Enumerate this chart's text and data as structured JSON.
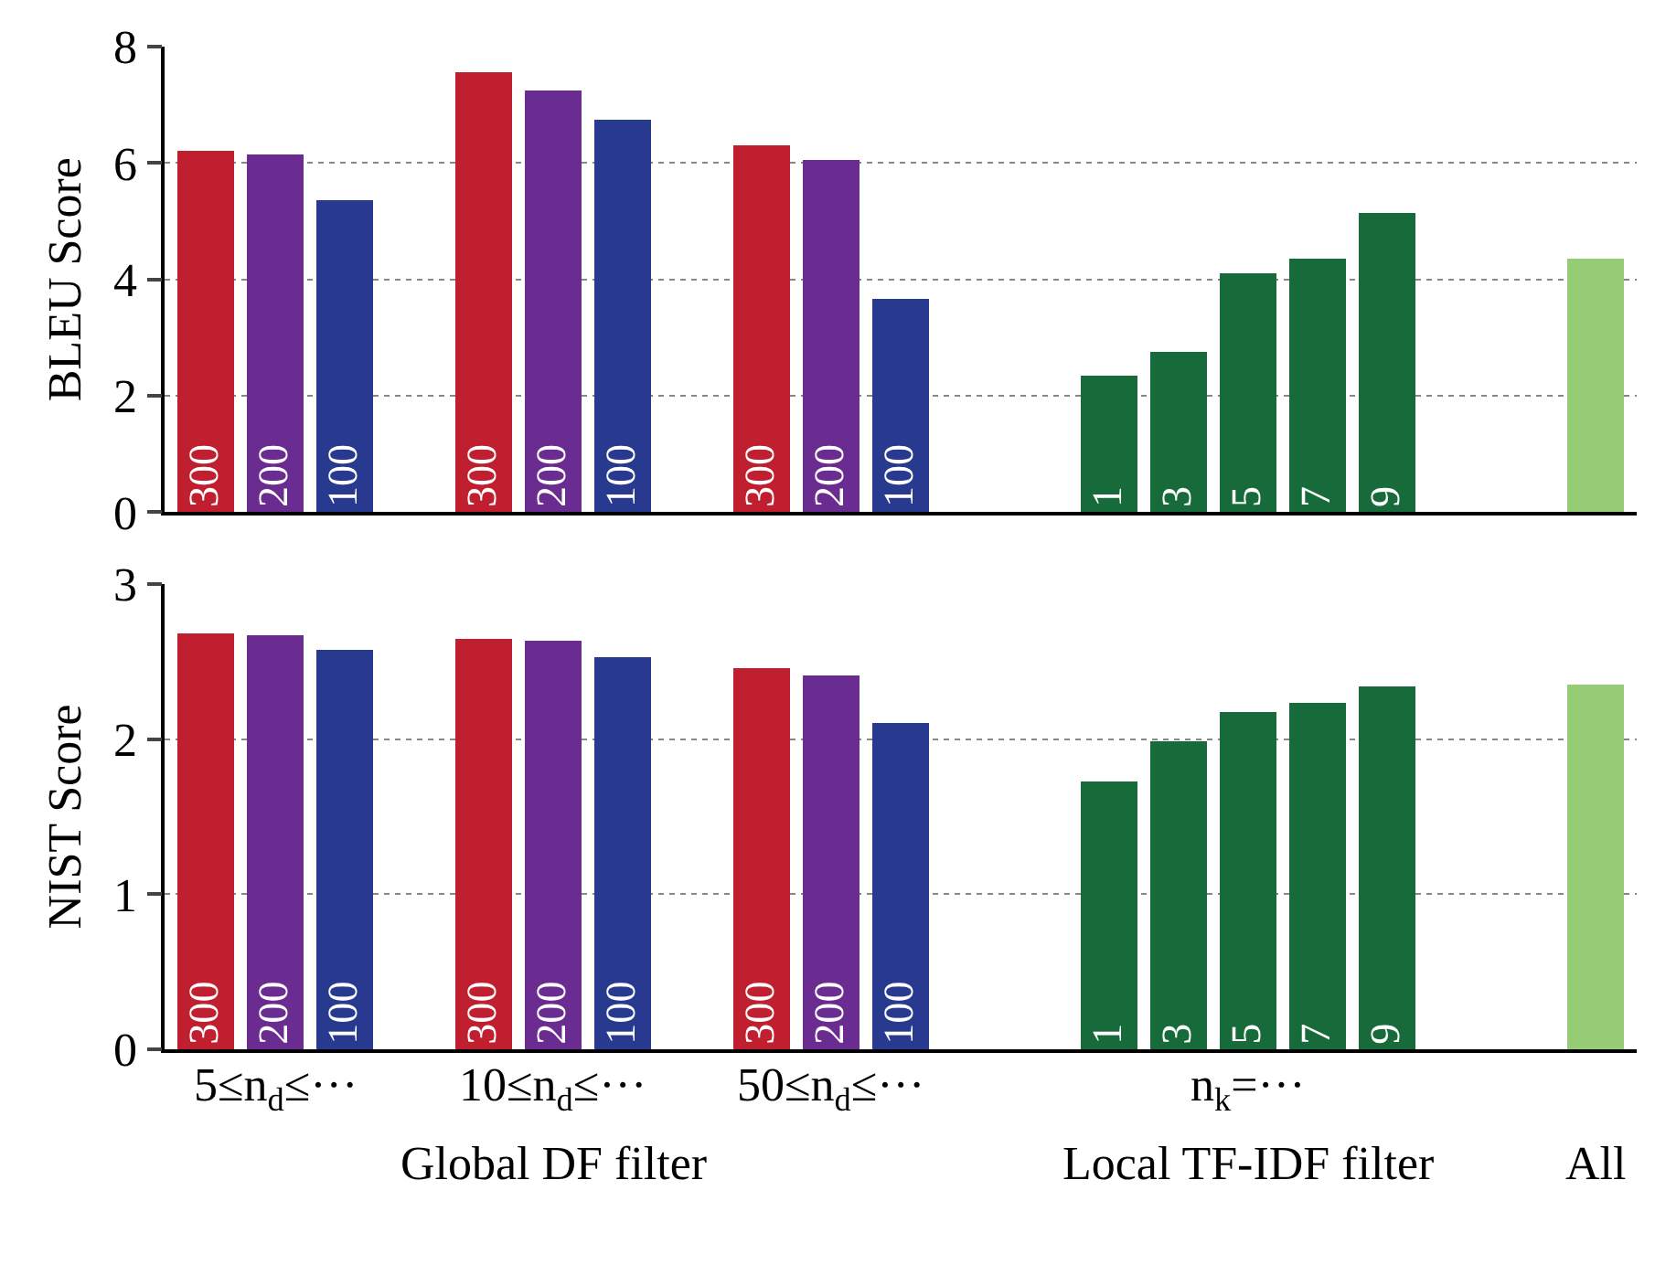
{
  "chart_data": [
    {
      "type": "bar",
      "ylabel": "BLEU Score",
      "categories": [
        "300",
        "200",
        "100",
        null,
        "300",
        "200",
        "100",
        null,
        "300",
        "200",
        "100",
        null,
        null,
        "1",
        "3",
        "5",
        "7",
        "9",
        null,
        null,
        null
      ],
      "values": [
        6.2,
        6.15,
        5.35,
        null,
        7.55,
        7.25,
        6.75,
        null,
        6.3,
        6.05,
        3.65,
        null,
        null,
        2.35,
        2.75,
        4.1,
        4.35,
        5.15,
        null,
        null,
        4.35
      ],
      "colors": [
        "#c01f2f",
        "#6b2c91",
        "#283a90",
        null,
        "#c01f2f",
        "#6b2c91",
        "#283a90",
        null,
        "#c01f2f",
        "#6b2c91",
        "#283a90",
        null,
        null,
        "#176b3a",
        "#176b3a",
        "#176b3a",
        "#176b3a",
        "#176b3a",
        null,
        null,
        "#96cd74"
      ],
      "ylim": [
        0,
        8
      ],
      "yticks": [
        0,
        2,
        4,
        6,
        8
      ],
      "grid": "y",
      "tick_labels": "y"
    },
    {
      "type": "bar",
      "ylabel": "NIST Score",
      "categories": [
        "300",
        "200",
        "100",
        null,
        "300",
        "200",
        "100",
        null,
        "300",
        "200",
        "100",
        null,
        null,
        "1",
        "3",
        "5",
        "7",
        "9",
        null,
        null,
        null
      ],
      "values": [
        2.68,
        2.67,
        2.58,
        null,
        2.65,
        2.63,
        2.53,
        null,
        2.46,
        2.41,
        2.11,
        null,
        null,
        1.73,
        1.99,
        2.17,
        2.23,
        2.34,
        null,
        null,
        2.35
      ],
      "colors": [
        "#c01f2f",
        "#6b2c91",
        "#283a90",
        null,
        "#c01f2f",
        "#6b2c91",
        "#283a90",
        null,
        "#c01f2f",
        "#6b2c91",
        "#283a90",
        null,
        null,
        "#176b3a",
        "#176b3a",
        "#176b3a",
        "#176b3a",
        "#176b3a",
        null,
        null,
        "#96cd74"
      ],
      "ylim": [
        0,
        3
      ],
      "yticks": [
        0,
        1,
        2,
        3
      ],
      "grid": "y",
      "tick_labels": "y",
      "annotations": [
        "5≤n$_{d}$≤···",
        "10≤n$_{d}$≤···",
        "50≤n$_{d}$≤···",
        "n$_{k}$=···",
        "Global DF filter",
        "Local TF-IDF filter",
        "All"
      ]
    }
  ]
}
